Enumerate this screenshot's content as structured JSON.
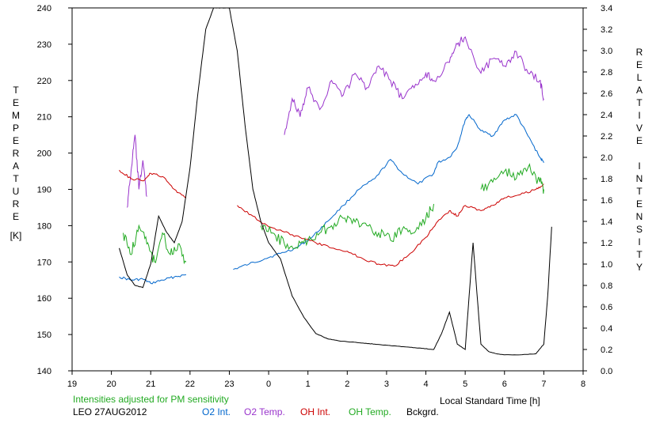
{
  "chart_data": {
    "type": "line",
    "title": "",
    "xlabel": "Local Standard Time [h]",
    "ylabel_left": [
      "T",
      "E",
      "M",
      "P",
      "E",
      "R",
      "A",
      "T",
      "U",
      "R",
      "E",
      "",
      "[K]"
    ],
    "ylabel_right": [
      "R",
      "E",
      "L",
      "A",
      "T",
      "I",
      "V",
      "E",
      "",
      "I",
      "N",
      "T",
      "E",
      "N",
      "S",
      "I",
      "T",
      "Y"
    ],
    "x_ticks": [
      "19",
      "20",
      "21",
      "22",
      "23",
      "0",
      "1",
      "2",
      "3",
      "4",
      "5",
      "6",
      "7",
      "8"
    ],
    "x_range": [
      19,
      32
    ],
    "y_left_range": [
      140,
      240
    ],
    "y_left_ticks": [
      "140",
      "150",
      "160",
      "170",
      "180",
      "190",
      "200",
      "210",
      "220",
      "230",
      "240"
    ],
    "y_right_range": [
      0.0,
      3.4
    ],
    "y_right_ticks": [
      "0.0",
      "0.2",
      "0.4",
      "0.6",
      "0.8",
      "1.0",
      "1.2",
      "1.4",
      "1.6",
      "1.8",
      "2.0",
      "2.2",
      "2.4",
      "2.6",
      "2.8",
      "3.0",
      "3.2",
      "3.4"
    ],
    "note": "Intensities adjusted for PM sensitivity",
    "station": "LEO 27AUG2012",
    "legend": [
      {
        "name": "O2 Int.",
        "color": "#0066cc"
      },
      {
        "name": "O2 Temp.",
        "color": "#9933cc"
      },
      {
        "name": "OH Int.",
        "color": "#cc0000"
      },
      {
        "name": "OH Temp.",
        "color": "#22aa22"
      },
      {
        "name": "Bckgrd.",
        "color": "#000000"
      }
    ],
    "series": [
      {
        "name": "O2 Int.",
        "axis": "right",
        "color": "#0066cc",
        "x": [
          20.2,
          20.5,
          20.8,
          21.0,
          21.3,
          21.6,
          21.9,
          23.1,
          23.5,
          23.9,
          24.3,
          24.7,
          25.1,
          25.5,
          25.9,
          26.3,
          26.7,
          27.1,
          27.4,
          27.8,
          28.2,
          28.3,
          28.6,
          28.8,
          29.0,
          29.1,
          29.4,
          29.7,
          30.0,
          30.3,
          30.6,
          30.9,
          31.0
        ],
        "y": [
          0.88,
          0.85,
          0.86,
          0.82,
          0.85,
          0.88,
          0.9,
          0.95,
          1.0,
          1.05,
          1.1,
          1.15,
          1.25,
          1.4,
          1.55,
          1.7,
          1.8,
          1.98,
          1.85,
          1.75,
          1.85,
          1.95,
          2.0,
          2.1,
          2.35,
          2.4,
          2.25,
          2.2,
          2.35,
          2.4,
          2.2,
          2.0,
          1.95
        ]
      },
      {
        "name": "O2 Temp.",
        "axis": "left",
        "color": "#9933cc",
        "x": [
          20.4,
          20.5,
          20.6,
          20.7,
          20.8,
          20.9,
          24.4,
          24.6,
          24.8,
          25.0,
          25.3,
          25.6,
          25.9,
          26.2,
          26.5,
          26.8,
          27.1,
          27.4,
          27.7,
          28.0,
          28.2,
          28.6,
          28.8,
          29.0,
          29.4,
          29.7,
          30.0,
          30.3,
          30.6,
          30.9,
          31.0
        ],
        "y": [
          185,
          195,
          205,
          190,
          198,
          188,
          205,
          215,
          210,
          218,
          212,
          220,
          216,
          222,
          218,
          224,
          220,
          215,
          218,
          222,
          220,
          225,
          230,
          232,
          222,
          226,
          224,
          228,
          222,
          220,
          215
        ]
      },
      {
        "name": "OH Int.",
        "axis": "right",
        "color": "#cc0000",
        "x": [
          20.2,
          20.5,
          20.8,
          21.0,
          21.3,
          21.6,
          21.9,
          23.2,
          23.6,
          24.0,
          24.4,
          24.8,
          25.2,
          25.6,
          26.0,
          26.4,
          26.8,
          27.2,
          27.6,
          28.0,
          28.3,
          28.6,
          28.8,
          29.0,
          29.4,
          29.7,
          30.0,
          30.4,
          30.8,
          31.0
        ],
        "y": [
          1.88,
          1.8,
          1.78,
          1.85,
          1.82,
          1.7,
          1.62,
          1.55,
          1.45,
          1.35,
          1.3,
          1.25,
          1.2,
          1.15,
          1.12,
          1.05,
          1.0,
          0.98,
          1.1,
          1.25,
          1.4,
          1.5,
          1.45,
          1.55,
          1.5,
          1.55,
          1.62,
          1.65,
          1.7,
          1.75
        ]
      },
      {
        "name": "OH Temp.",
        "axis": "left",
        "color": "#22aa22",
        "x": [
          20.3,
          20.5,
          20.7,
          20.9,
          21.1,
          21.3,
          21.5,
          21.7,
          21.9,
          23.8,
          24.1,
          24.4,
          24.7,
          25.0,
          25.3,
          25.6,
          25.9,
          26.2,
          26.5,
          26.8,
          27.1,
          27.4,
          27.7,
          28.0,
          28.2,
          29.4,
          29.7,
          30.0,
          30.3,
          30.6,
          30.9,
          31.0
        ],
        "y": [
          178,
          172,
          180,
          175,
          170,
          178,
          172,
          175,
          170,
          180,
          178,
          175,
          174,
          176,
          178,
          180,
          182,
          181,
          180,
          178,
          176,
          179,
          178,
          182,
          186,
          190,
          192,
          195,
          193,
          196,
          192,
          190
        ]
      },
      {
        "name": "Bckgrd.",
        "axis": "right",
        "color": "#000000",
        "x": [
          20.2,
          20.4,
          20.6,
          20.8,
          21.0,
          21.2,
          21.4,
          21.6,
          21.8,
          22.0,
          22.2,
          22.4,
          22.6,
          22.8,
          23.0,
          23.2,
          23.4,
          23.6,
          23.8,
          24.0,
          24.3,
          24.6,
          24.9,
          25.2,
          25.5,
          25.8,
          26.1,
          26.4,
          26.7,
          27.0,
          27.3,
          27.6,
          27.9,
          28.2,
          28.4,
          28.6,
          28.8,
          29.0,
          29.2,
          29.4,
          29.6,
          29.8,
          30.0,
          30.4,
          30.8,
          31.0,
          31.1,
          31.2
        ],
        "y": [
          1.15,
          0.9,
          0.8,
          0.78,
          1.0,
          1.45,
          1.3,
          1.2,
          1.4,
          1.9,
          2.6,
          3.2,
          3.4,
          3.4,
          3.4,
          3.0,
          2.3,
          1.7,
          1.4,
          1.2,
          1.05,
          0.7,
          0.5,
          0.35,
          0.3,
          0.28,
          0.27,
          0.26,
          0.25,
          0.24,
          0.23,
          0.22,
          0.21,
          0.2,
          0.35,
          0.55,
          0.25,
          0.2,
          1.2,
          0.25,
          0.18,
          0.16,
          0.15,
          0.15,
          0.16,
          0.25,
          0.7,
          1.35
        ]
      }
    ]
  }
}
